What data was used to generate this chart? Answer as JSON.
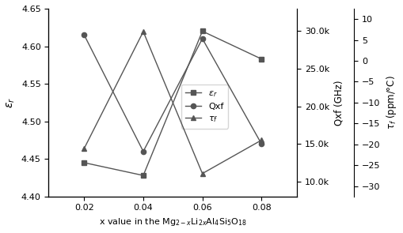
{
  "x": [
    0.02,
    0.04,
    0.06,
    0.08
  ],
  "epsilon_r": [
    4.445,
    4.428,
    4.62,
    4.583
  ],
  "Qxf": [
    29500,
    14000,
    29000,
    15000
  ],
  "tau_f": [
    -21,
    7,
    -27,
    -19
  ],
  "epsilon_r_label": "$\\varepsilon_r$",
  "Qxf_label": "Qxf",
  "tau_f_label": "$\\tau_f$",
  "left_ylabel": "$\\varepsilon_r$",
  "middle_ylabel": "Qxf (GHz)",
  "right_ylabel": "$\\tau_f$ (ppm/°C)",
  "xlabel": "x value in the Mg$_{2-x}$Li$_{2x}$Al$_4$Si$_5$O$_{18}$",
  "left_ylim": [
    4.4,
    4.65
  ],
  "left_yticks": [
    4.4,
    4.45,
    4.5,
    4.55,
    4.6,
    4.65
  ],
  "Qxf_ylim": [
    8000,
    33000
  ],
  "Qxf_yticks": [
    10000,
    15000,
    20000,
    25000,
    30000
  ],
  "tau_ylim": [
    -32.5,
    12.5
  ],
  "tau_yticks": [
    -30,
    -25,
    -20,
    -15,
    -10,
    -5,
    0,
    5,
    10
  ],
  "line_color": "#555555",
  "background": "#ffffff"
}
